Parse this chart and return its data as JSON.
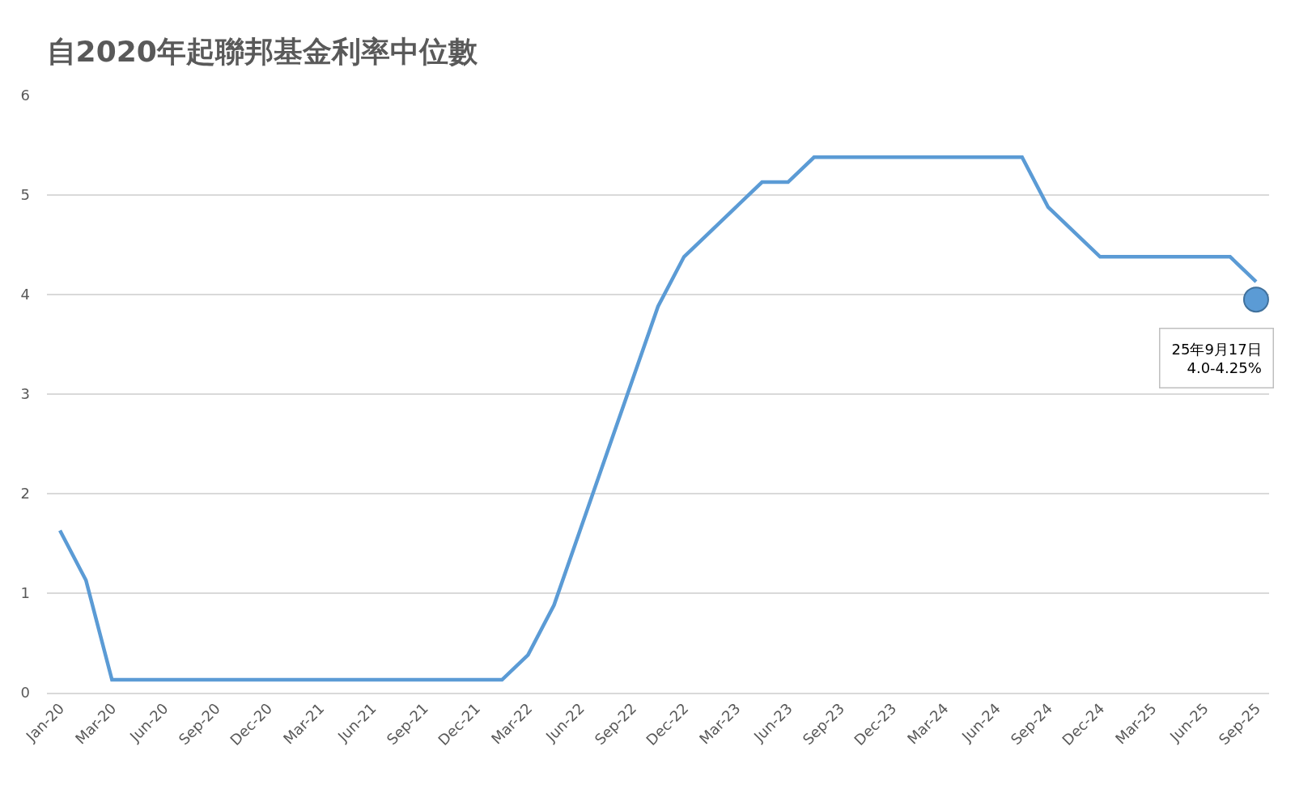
{
  "chart_data": {
    "type": "line",
    "title": "自2020年起聯邦基金利率中位數",
    "categories": [
      "Jan-20",
      null,
      "Mar-20",
      null,
      "Jun-20",
      null,
      "Sep-20",
      null,
      "Dec-20",
      null,
      "Mar-21",
      null,
      "Jun-21",
      null,
      "Sep-21",
      null,
      "Dec-21",
      null,
      "Mar-22",
      null,
      "Jun-22",
      null,
      "Sep-22",
      null,
      "Dec-22",
      null,
      "Mar-23",
      null,
      "Jun-23",
      null,
      "Sep-23",
      null,
      "Dec-23",
      null,
      "Mar-24",
      null,
      "Jun-24",
      null,
      "Sep-24",
      null,
      "Dec-24",
      null,
      "Mar-25",
      null,
      "Jun-25",
      null,
      "Sep-25"
    ],
    "series": [
      {
        "color": "#5b9bd5",
        "values": [
          1.63,
          1.13,
          0.13,
          0.13,
          0.13,
          0.13,
          0.13,
          0.13,
          0.13,
          0.13,
          0.13,
          0.13,
          0.13,
          0.13,
          0.13,
          0.13,
          0.13,
          0.13,
          0.38,
          0.88,
          1.63,
          2.38,
          3.13,
          3.88,
          4.38,
          4.63,
          4.88,
          5.13,
          5.13,
          5.38,
          5.38,
          5.38,
          5.38,
          5.38,
          5.38,
          5.38,
          5.38,
          5.38,
          4.88,
          4.63,
          4.38,
          4.38,
          4.38,
          4.38,
          4.38,
          4.38,
          4.13
        ]
      },
      {
        "type": "scatter",
        "color": "#5b9bd5",
        "marker": "circle",
        "values": [
          null,
          null,
          null,
          null,
          null,
          null,
          null,
          null,
          null,
          null,
          null,
          null,
          null,
          null,
          null,
          null,
          null,
          null,
          null,
          null,
          null,
          null,
          null,
          null,
          null,
          null,
          null,
          null,
          null,
          null,
          null,
          null,
          null,
          null,
          null,
          null,
          null,
          null,
          null,
          null,
          null,
          null,
          null,
          null,
          null,
          null,
          3.95
        ]
      }
    ],
    "annotations": [
      "25年9月17日\n4.0-4.25%"
    ],
    "ylim": [
      0,
      6
    ],
    "yticks": [
      0,
      1,
      2,
      3,
      4,
      5,
      6
    ],
    "grid": "y",
    "line_style": "solid"
  }
}
